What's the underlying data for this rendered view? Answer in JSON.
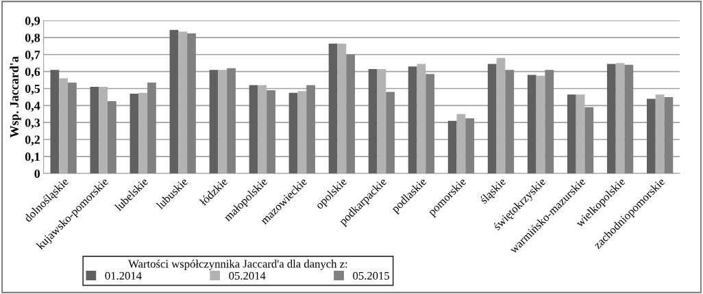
{
  "chart_data": {
    "type": "bar",
    "ylabel": "Wsp. Jaccard'a",
    "legend_title": "Wartości współczynnika Jaccard'a dla danych z:",
    "categories": [
      "dolnośląskie",
      "kujawsko-pomorskie",
      "lubelskie",
      "lubuskie",
      "łódzkie",
      "małopolskie",
      "mazowieckie",
      "opolskie",
      "podkarpackie",
      "podlaskie",
      "pomorskie",
      "śląskie",
      "świętokrzyskie",
      "warmińsko-mazurskie",
      "wielkopolskie",
      "zachodniopomorskie"
    ],
    "series": [
      {
        "name": "01.2014",
        "color": "#606060",
        "values": [
          0.61,
          0.51,
          0.47,
          0.845,
          0.61,
          0.52,
          0.475,
          0.765,
          0.615,
          0.63,
          0.31,
          0.645,
          0.58,
          0.465,
          0.645,
          0.44
        ]
      },
      {
        "name": "05.2014",
        "color": "#b3b3b3",
        "values": [
          0.56,
          0.51,
          0.475,
          0.835,
          0.61,
          0.52,
          0.485,
          0.765,
          0.615,
          0.645,
          0.35,
          0.68,
          0.575,
          0.465,
          0.65,
          0.465
        ]
      },
      {
        "name": "05.2015",
        "color": "#808080",
        "values": [
          0.535,
          0.425,
          0.535,
          0.825,
          0.62,
          0.49,
          0.52,
          0.7,
          0.48,
          0.585,
          0.325,
          0.61,
          0.61,
          0.39,
          0.64,
          0.45
        ]
      }
    ],
    "ylim": [
      0,
      0.9
    ],
    "yticks": [
      {
        "value": 0,
        "label": "0"
      },
      {
        "value": 0.1,
        "label": "0,1"
      },
      {
        "value": 0.2,
        "label": "0,2"
      },
      {
        "value": 0.3,
        "label": "0,3"
      },
      {
        "value": 0.4,
        "label": "0,4"
      },
      {
        "value": 0.5,
        "label": "0,5"
      },
      {
        "value": 0.6,
        "label": "0,6"
      },
      {
        "value": 0.7,
        "label": "0,7"
      },
      {
        "value": 0.8,
        "label": "0,8"
      },
      {
        "value": 0.9,
        "label": "0,9"
      }
    ],
    "grid": "y",
    "legend": "bottom left"
  }
}
